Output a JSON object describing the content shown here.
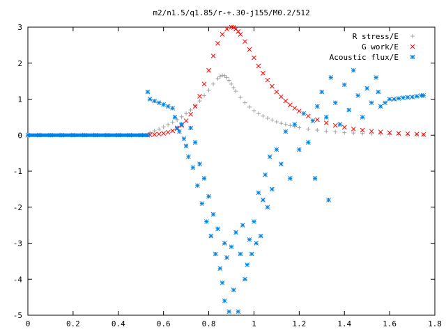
{
  "chart_data": {
    "type": "scatter",
    "title": "m2/n1.5/q1.85/r-+.30-j155/M0.2/512",
    "xlabel": "",
    "ylabel": "",
    "xlim": [
      0,
      1.8
    ],
    "ylim": [
      -5,
      3
    ],
    "x_ticks": [
      "0",
      "0.2",
      "0.4",
      "0.6",
      "0.8",
      "1",
      "1.2",
      "1.4",
      "1.6",
      "1.8"
    ],
    "y_ticks": [
      "3",
      "2",
      "1",
      "0",
      "-1",
      "-2",
      "-3",
      "-4",
      "-5"
    ],
    "legend_position": "top-right",
    "grid": false,
    "series": [
      {
        "name": "R stress/E",
        "marker": "plus",
        "color": "#a0a0a0",
        "x": [
          0.54,
          0.56,
          0.58,
          0.6,
          0.62,
          0.64,
          0.66,
          0.68,
          0.7,
          0.72,
          0.74,
          0.76,
          0.78,
          0.8,
          0.82,
          0.84,
          0.85,
          0.86,
          0.87,
          0.88,
          0.89,
          0.9,
          0.91,
          0.92,
          0.94,
          0.96,
          0.98,
          1.0,
          1.02,
          1.04,
          1.06,
          1.08,
          1.1,
          1.12,
          1.14,
          1.16,
          1.18,
          1.2,
          1.24,
          1.28,
          1.32,
          1.36,
          1.4,
          1.44,
          1.48,
          1.52,
          1.56,
          1.6,
          1.64,
          1.68,
          1.72,
          1.75
        ],
        "y": [
          0.07,
          0.12,
          0.17,
          0.23,
          0.29,
          0.36,
          0.43,
          0.51,
          0.6,
          0.7,
          0.82,
          0.95,
          1.1,
          1.25,
          1.42,
          1.57,
          1.63,
          1.66,
          1.65,
          1.6,
          1.52,
          1.42,
          1.32,
          1.22,
          1.05,
          0.9,
          0.78,
          0.68,
          0.6,
          0.53,
          0.47,
          0.42,
          0.37,
          0.33,
          0.3,
          0.27,
          0.24,
          0.21,
          0.17,
          0.14,
          0.11,
          0.09,
          0.07,
          0.06,
          0.05,
          0.04,
          0.03,
          0.02,
          0.02,
          0.01,
          0.01,
          0.01
        ]
      },
      {
        "name": "G work/E",
        "marker": "cross",
        "color": "#ff0000",
        "x": [
          0.54,
          0.56,
          0.58,
          0.6,
          0.62,
          0.64,
          0.66,
          0.68,
          0.7,
          0.72,
          0.74,
          0.76,
          0.78,
          0.8,
          0.82,
          0.84,
          0.86,
          0.88,
          0.9,
          0.91,
          0.92,
          0.93,
          0.94,
          0.96,
          0.98,
          1.0,
          1.02,
          1.04,
          1.06,
          1.08,
          1.1,
          1.12,
          1.14,
          1.16,
          1.18,
          1.2,
          1.24,
          1.28,
          1.32,
          1.36,
          1.4,
          1.44,
          1.48,
          1.52,
          1.56,
          1.6,
          1.64,
          1.68,
          1.72,
          1.75
        ],
        "y": [
          0.01,
          0.02,
          0.03,
          0.05,
          0.08,
          0.12,
          0.18,
          0.27,
          0.4,
          0.58,
          0.8,
          1.08,
          1.42,
          1.8,
          2.2,
          2.55,
          2.8,
          2.95,
          3.0,
          2.99,
          2.95,
          2.88,
          2.8,
          2.6,
          2.38,
          2.15,
          1.92,
          1.72,
          1.53,
          1.36,
          1.2,
          1.07,
          0.95,
          0.84,
          0.75,
          0.67,
          0.53,
          0.43,
          0.34,
          0.27,
          0.22,
          0.17,
          0.14,
          0.11,
          0.09,
          0.07,
          0.05,
          0.04,
          0.03,
          0.02
        ]
      },
      {
        "name": "Acoustic flux/E",
        "marker": "star",
        "color": "#0080e0",
        "x": [
          0.0,
          0.05,
          0.1,
          0.15,
          0.2,
          0.25,
          0.3,
          0.35,
          0.4,
          0.45,
          0.5,
          0.53,
          0.53,
          0.54,
          0.56,
          0.58,
          0.6,
          0.62,
          0.64,
          0.65,
          0.66,
          0.67,
          0.68,
          0.69,
          0.7,
          0.71,
          0.72,
          0.73,
          0.74,
          0.75,
          0.76,
          0.77,
          0.78,
          0.79,
          0.8,
          0.81,
          0.82,
          0.83,
          0.84,
          0.85,
          0.86,
          0.87,
          0.87,
          0.88,
          0.89,
          0.9,
          0.91,
          0.92,
          0.93,
          0.94,
          0.95,
          0.96,
          0.97,
          0.98,
          0.99,
          1.0,
          1.01,
          1.02,
          1.03,
          1.04,
          1.05,
          1.06,
          1.07,
          1.08,
          1.1,
          1.12,
          1.14,
          1.16,
          1.18,
          1.2,
          1.22,
          1.24,
          1.26,
          1.27,
          1.28,
          1.3,
          1.32,
          1.33,
          1.34,
          1.36,
          1.38,
          1.4,
          1.42,
          1.44,
          1.46,
          1.48,
          1.5,
          1.52,
          1.54,
          1.55,
          1.56,
          1.58,
          1.6,
          1.62,
          1.64,
          1.66,
          1.68,
          1.7,
          1.72,
          1.74,
          1.75
        ],
        "y": [
          0,
          0,
          0,
          0,
          0,
          0,
          0,
          0,
          0,
          0,
          0,
          0,
          1.2,
          1.0,
          0.95,
          0.9,
          0.85,
          0.8,
          0.75,
          0.5,
          0.2,
          0.1,
          0.3,
          -0.1,
          -0.3,
          -0.6,
          0.2,
          -0.9,
          -0.2,
          -1.4,
          -0.8,
          -1.9,
          -1.2,
          -2.4,
          -1.7,
          -2.8,
          -2.2,
          -3.3,
          -2.6,
          -3.7,
          -4.1,
          -3.0,
          -4.6,
          -3.4,
          -4.9,
          -3.1,
          -4.3,
          -2.7,
          -4.9,
          -3.3,
          -2.5,
          -4.0,
          -3.6,
          -2.9,
          -3.3,
          -2.4,
          -3.0,
          -1.6,
          -2.8,
          -1.8,
          -1.1,
          -2.0,
          -0.6,
          -1.5,
          -0.4,
          -0.8,
          0.1,
          -1.2,
          0.3,
          -0.4,
          0.6,
          -0.2,
          0.4,
          -1.2,
          0.8,
          1.2,
          0.5,
          -1.8,
          1.6,
          0.9,
          0.3,
          1.4,
          0.7,
          1.8,
          1.1,
          0.5,
          1.3,
          0.9,
          1.6,
          1.2,
          0.8,
          0.9,
          1.0,
          1.0,
          1.02,
          1.04,
          1.05,
          1.06,
          1.08,
          1.1,
          1.1
        ]
      }
    ]
  }
}
